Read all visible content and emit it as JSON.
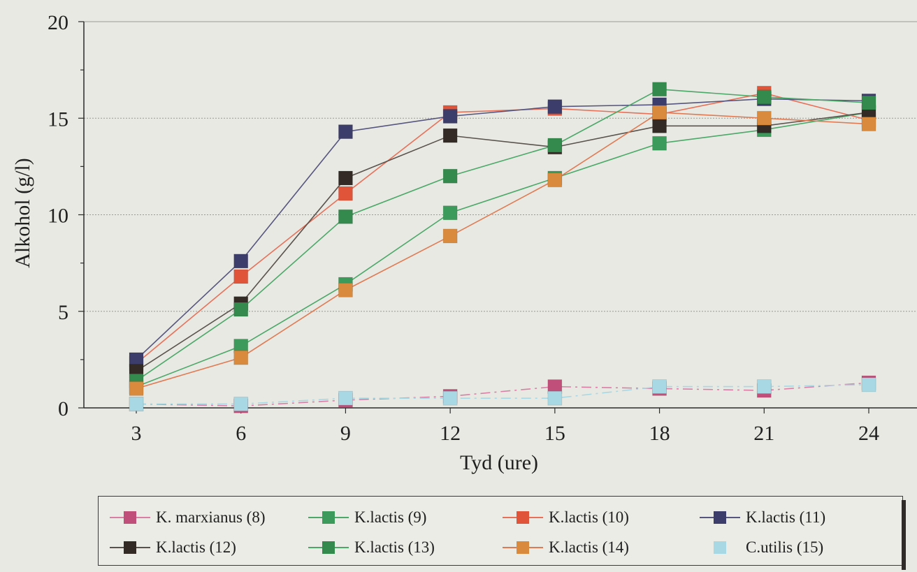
{
  "chart_data": {
    "type": "line",
    "xlabel": "Tyd (ure)",
    "ylabel": "Alkohol (g/l)",
    "x": [
      3,
      6,
      9,
      12,
      15,
      18,
      21,
      24
    ],
    "xlim": [
      3,
      24
    ],
    "ylim": [
      0,
      20
    ],
    "y_ticks": [
      0,
      5,
      10,
      15,
      20
    ],
    "grid": "horizontal",
    "legend_position": "bottom",
    "series": [
      {
        "name": "K. marxianus (8)",
        "color": "#c0507a",
        "line_color": "#d97fa6",
        "values": [
          0.2,
          0.1,
          0.4,
          0.6,
          1.1,
          1.0,
          0.9,
          1.3
        ]
      },
      {
        "name": "K.lactis (9)",
        "color": "#3c9a5a",
        "line_color": "#4aa868",
        "values": [
          1.1,
          3.2,
          6.4,
          10.1,
          11.9,
          13.7,
          14.4,
          15.3
        ]
      },
      {
        "name": "K.lactis (10)",
        "color": "#e0553a",
        "line_color": "#e87058",
        "values": [
          2.3,
          6.8,
          11.1,
          15.3,
          15.5,
          15.2,
          16.3,
          14.9
        ]
      },
      {
        "name": "K.lactis (11)",
        "color": "#3d3d6b",
        "line_color": "#55557f",
        "values": [
          2.5,
          7.6,
          14.3,
          15.1,
          15.6,
          15.7,
          16.0,
          15.9
        ]
      },
      {
        "name": "K.lactis (12)",
        "color": "#332a25",
        "line_color": "#5a524c",
        "values": [
          1.9,
          5.4,
          11.9,
          14.1,
          13.5,
          14.6,
          14.6,
          15.3
        ]
      },
      {
        "name": "K.lactis (13)",
        "color": "#338a4c",
        "line_color": "#4aa868",
        "values": [
          1.4,
          5.1,
          9.9,
          12.0,
          13.6,
          16.5,
          16.1,
          15.8
        ]
      },
      {
        "name": "K.lactis (14)",
        "color": "#d98a3c",
        "line_color": "#e07a52",
        "values": [
          1.0,
          2.6,
          6.1,
          8.9,
          11.8,
          15.3,
          15.0,
          14.7
        ]
      },
      {
        "name": "C.utilis (15)",
        "color": "#a8d8e4",
        "line_color": "#a8d8e4",
        "values": [
          0.2,
          0.2,
          0.5,
          0.5,
          0.5,
          1.1,
          1.1,
          1.2
        ]
      }
    ]
  }
}
